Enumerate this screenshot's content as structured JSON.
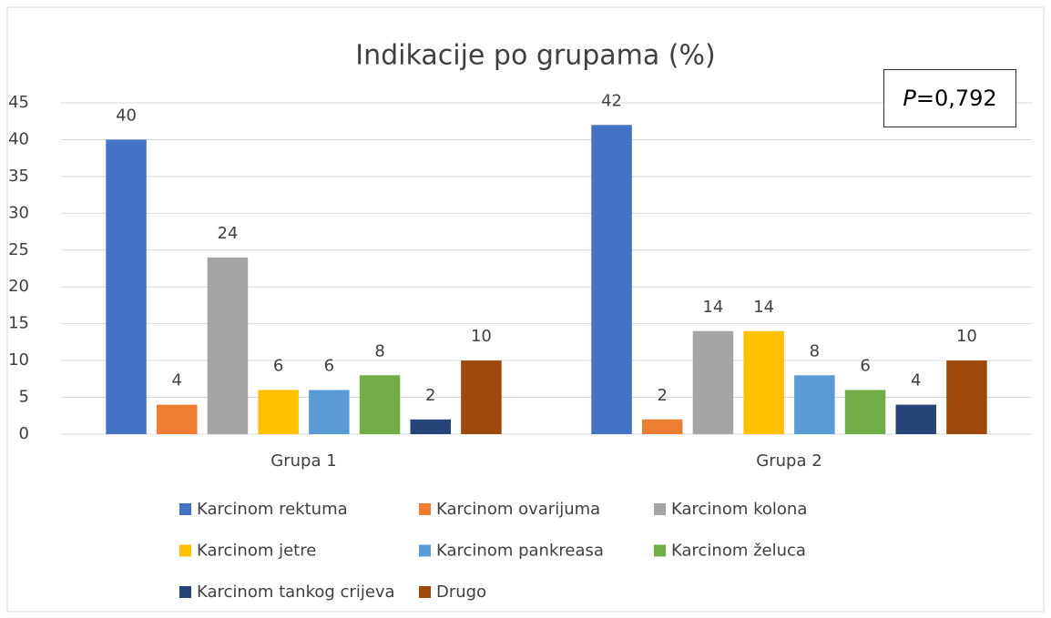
{
  "chart_data": {
    "type": "bar",
    "title": "Indikacije po grupama (%)",
    "annotation": "P=0,792",
    "categories": [
      "Grupa 1",
      "Grupa 2"
    ],
    "series": [
      {
        "name": "Karcinom rektuma",
        "color": "#4472C4",
        "values": [
          40,
          42
        ]
      },
      {
        "name": "Karcinom ovarijuma",
        "color": "#ED7D31",
        "values": [
          4,
          2
        ]
      },
      {
        "name": "Karcinom kolona",
        "color": "#A5A5A5",
        "values": [
          24,
          14
        ]
      },
      {
        "name": "Karcinom jetre",
        "color": "#FFC000",
        "values": [
          6,
          14
        ]
      },
      {
        "name": "Karcinom pankreasa",
        "color": "#5B9BD5",
        "values": [
          6,
          8
        ]
      },
      {
        "name": "Karcinom želuca",
        "color": "#70AD47",
        "values": [
          8,
          6
        ]
      },
      {
        "name": "Karcinom tankog crijeva",
        "color": "#264478",
        "values": [
          2,
          4
        ]
      },
      {
        "name": "Drugo",
        "color": "#9E480E",
        "values": [
          10,
          10
        ]
      }
    ],
    "ylim": [
      0,
      45
    ],
    "yticks": [
      0,
      5,
      10,
      15,
      20,
      25,
      30,
      35,
      40,
      45
    ],
    "grid": true,
    "legend": "bottom"
  }
}
